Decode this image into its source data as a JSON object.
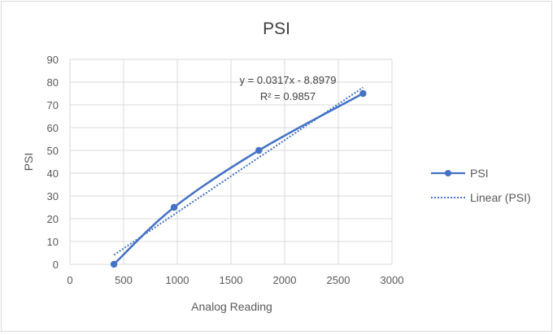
{
  "chart_data": {
    "type": "scatter",
    "title": "PSI",
    "xlabel": "Analog Reading",
    "ylabel": "PSI",
    "xlim": [
      0,
      3000
    ],
    "ylim": [
      0,
      90
    ],
    "xticks": [
      0,
      500,
      1000,
      1500,
      2000,
      2500,
      3000
    ],
    "yticks": [
      0,
      10,
      20,
      30,
      40,
      50,
      60,
      70,
      80,
      90
    ],
    "grid": true,
    "legend_position": "right",
    "series": [
      {
        "name": "PSI",
        "style": "smooth line with markers",
        "color": "#4472C4",
        "x": [
          410,
          970,
          1760,
          2730
        ],
        "y": [
          0,
          25,
          50,
          75
        ]
      }
    ],
    "trendline": {
      "name": "Linear (PSI)",
      "style": "dotted",
      "color": "#4472C4",
      "slope": 0.0317,
      "intercept": -8.8979,
      "x_range": [
        410,
        2730
      ],
      "equation": "y = 0.0317x - 8.8979",
      "r_squared": "R² = 0.9857"
    }
  }
}
